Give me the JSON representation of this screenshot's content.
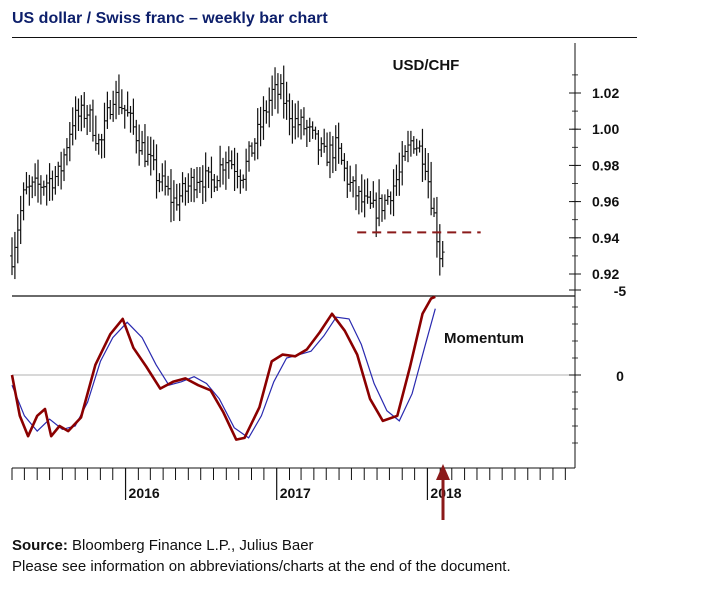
{
  "title": "US dollar / Swiss franc – weekly bar chart",
  "footer": {
    "source_label": "Source:",
    "source_text": "Bloomberg Finance L.P., Julius Baer",
    "note": "Please see information on abbreviations/charts at the end of the document."
  },
  "colors": {
    "title": "#0d1f6b",
    "bars": "#111111",
    "support_line": "#8b1a1a",
    "momentum_fast": "#8b0000",
    "momentum_slow": "#2a2ab0",
    "arrow": "#8b1a1a",
    "zero_line": "#b0b0b0"
  },
  "chart_data": [
    {
      "type": "ohlc",
      "panel_label": "USD/CHF",
      "frequency": "weekly",
      "x": {
        "type": "date",
        "start": "2015-04-01",
        "end": "2018-02-15",
        "tick_labels": [
          "2016",
          "2017",
          "2018"
        ]
      },
      "y": {
        "ticks": [
          0.92,
          0.94,
          0.96,
          0.98,
          1.0,
          1.02
        ],
        "tick_labels": [
          "0.92",
          "0.94",
          "0.96",
          "0.98",
          "1.00",
          "1.02"
        ],
        "ylim": [
          0.905,
          1.045
        ]
      },
      "approx_close_path": [
        [
          "2015-04-01",
          0.93
        ],
        [
          "2015-05-01",
          0.965
        ],
        [
          "2015-06-15",
          0.97
        ],
        [
          "2015-07-25",
          0.975
        ],
        [
          "2015-08-25",
          1.005
        ],
        [
          "2015-10-01",
          1.01
        ],
        [
          "2015-11-01",
          0.99
        ],
        [
          "2015-12-01",
          1.02
        ],
        [
          "2016-01-01",
          1.01
        ],
        [
          "2016-02-10",
          0.99
        ],
        [
          "2016-03-15",
          0.975
        ],
        [
          "2016-04-25",
          0.96
        ],
        [
          "2016-05-20",
          0.965
        ],
        [
          "2016-06-25",
          0.975
        ],
        [
          "2016-07-25",
          0.97
        ],
        [
          "2016-09-01",
          0.985
        ],
        [
          "2016-10-10",
          0.975
        ],
        [
          "2016-11-20",
          1.0
        ],
        [
          "2016-12-20",
          1.02
        ],
        [
          "2017-01-10",
          1.02
        ],
        [
          "2017-02-10",
          1.005
        ],
        [
          "2017-03-15",
          1.0
        ],
        [
          "2017-04-25",
          0.985
        ],
        [
          "2017-05-25",
          0.99
        ],
        [
          "2017-06-25",
          0.97
        ],
        [
          "2017-07-25",
          0.96
        ],
        [
          "2017-08-25",
          0.955
        ],
        [
          "2017-09-20",
          0.96
        ],
        [
          "2017-10-25",
          0.975
        ],
        [
          "2017-11-25",
          0.995
        ],
        [
          "2017-12-25",
          0.985
        ],
        [
          "2018-01-15",
          0.955
        ],
        [
          "2018-02-01",
          0.93
        ],
        [
          "2018-02-08",
          0.935
        ]
      ],
      "support_level": {
        "value": 0.943,
        "from": "2017-07-15",
        "to": "2018-05-10",
        "style": "dashed"
      }
    },
    {
      "type": "line",
      "panel_label": "Momentum",
      "y": {
        "ticks": [
          0,
          -5
        ],
        "tick_labels": [
          "0",
          "-5"
        ],
        "ylim": [
          -5.7,
          4.6
        ],
        "zero_line": true
      },
      "series": [
        {
          "points": [
            [
              "2015-04-01",
              0.0
            ],
            [
              "2015-04-20",
              2.4
            ],
            [
              "2015-05-10",
              3.6
            ],
            [
              "2015-06-01",
              2.4
            ],
            [
              "2015-06-20",
              2.0
            ],
            [
              "2015-07-05",
              3.6
            ],
            [
              "2015-07-25",
              3.0
            ],
            [
              "2015-08-15",
              3.3
            ],
            [
              "2015-09-15",
              2.5
            ],
            [
              "2015-10-20",
              -0.6
            ],
            [
              "2015-11-25",
              -2.4
            ],
            [
              "2015-12-25",
              -3.3
            ],
            [
              "2016-01-20",
              -1.6
            ],
            [
              "2016-02-20",
              -0.5
            ],
            [
              "2016-03-25",
              0.8
            ],
            [
              "2016-04-25",
              0.4
            ],
            [
              "2016-05-25",
              0.2
            ],
            [
              "2016-06-25",
              0.6
            ],
            [
              "2016-07-25",
              0.9
            ],
            [
              "2016-08-25",
              2.2
            ],
            [
              "2016-09-25",
              3.8
            ],
            [
              "2016-10-15",
              3.7
            ],
            [
              "2016-11-20",
              1.9
            ],
            [
              "2016-12-20",
              -0.8
            ],
            [
              "2017-01-15",
              -1.2
            ],
            [
              "2017-02-15",
              -1.1
            ],
            [
              "2017-03-15",
              -1.5
            ],
            [
              "2017-04-15",
              -2.5
            ],
            [
              "2017-05-15",
              -3.6
            ],
            [
              "2017-06-15",
              -2.6
            ],
            [
              "2017-07-15",
              -1.2
            ],
            [
              "2017-08-15",
              1.4
            ],
            [
              "2017-09-15",
              2.7
            ],
            [
              "2017-10-20",
              2.4
            ],
            [
              "2017-11-20",
              -0.5
            ],
            [
              "2017-12-20",
              -3.6
            ],
            [
              "2018-01-10",
              -4.5
            ],
            [
              "2018-01-20",
              -4.6
            ]
          ]
        },
        {
          "points": [
            [
              "2015-04-01",
              0.6
            ],
            [
              "2015-05-01",
              2.4
            ],
            [
              "2015-06-01",
              3.3
            ],
            [
              "2015-07-01",
              2.6
            ],
            [
              "2015-08-01",
              3.2
            ],
            [
              "2015-09-01",
              3.0
            ],
            [
              "2015-10-01",
              1.6
            ],
            [
              "2015-11-01",
              -0.8
            ],
            [
              "2015-12-01",
              -2.2
            ],
            [
              "2016-01-05",
              -3.1
            ],
            [
              "2016-02-10",
              -2.2
            ],
            [
              "2016-03-15",
              -0.6
            ],
            [
              "2016-04-15",
              0.6
            ],
            [
              "2016-05-15",
              0.4
            ],
            [
              "2016-06-15",
              0.1
            ],
            [
              "2016-07-15",
              0.5
            ],
            [
              "2016-08-15",
              1.4
            ],
            [
              "2016-09-20",
              3.1
            ],
            [
              "2016-10-25",
              3.7
            ],
            [
              "2016-11-25",
              2.4
            ],
            [
              "2016-12-25",
              0.4
            ],
            [
              "2017-01-25",
              -1.0
            ],
            [
              "2017-02-25",
              -1.2
            ],
            [
              "2017-03-25",
              -1.4
            ],
            [
              "2017-04-25",
              -2.3
            ],
            [
              "2017-05-25",
              -3.4
            ],
            [
              "2017-06-25",
              -3.3
            ],
            [
              "2017-07-25",
              -1.8
            ],
            [
              "2017-08-25",
              0.5
            ],
            [
              "2017-09-25",
              2.1
            ],
            [
              "2017-10-25",
              2.7
            ],
            [
              "2017-11-25",
              1.1
            ],
            [
              "2017-12-25",
              -1.6
            ],
            [
              "2018-01-20",
              -3.9
            ]
          ]
        }
      ]
    }
  ]
}
